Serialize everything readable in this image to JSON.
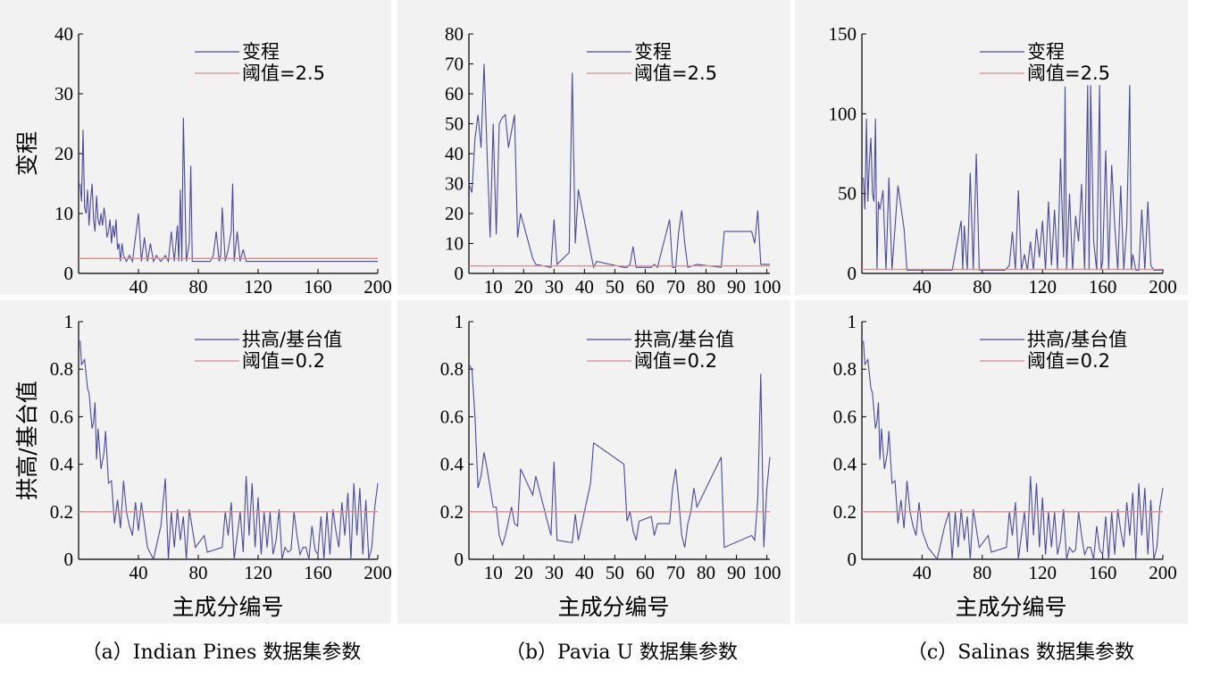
{
  "captions": [
    "（a）Indian Pines 数据集参数",
    "（b）Pavia U 数据集参数",
    "（c）Salinas 数据集参数"
  ],
  "xlabel": "主成分编号",
  "colors": {
    "series": "#4a4a9c",
    "threshold": "#d98c8c",
    "panel_bg": "#f2f2f2"
  },
  "chart_data": [
    {
      "type": "line",
      "ylabel": "变程",
      "xlim": [
        0,
        200
      ],
      "ylim": [
        0,
        40
      ],
      "xticks": [
        40,
        80,
        120,
        160,
        200
      ],
      "yticks": [
        0,
        10,
        20,
        30,
        40
      ],
      "series": [
        {
          "name": "变程",
          "x": [
            1,
            2,
            3,
            4,
            5,
            6,
            7,
            8,
            9,
            10,
            11,
            12,
            13,
            14,
            15,
            16,
            17,
            18,
            19,
            20,
            21,
            22,
            23,
            24,
            25,
            26,
            27,
            28,
            29,
            30,
            32,
            34,
            36,
            38,
            40,
            42,
            44,
            46,
            48,
            50,
            52,
            55,
            58,
            60,
            62,
            64,
            66,
            67,
            68,
            69,
            70,
            72,
            74,
            75,
            76,
            78,
            80,
            84,
            88,
            90,
            92,
            94,
            95,
            96,
            98,
            100,
            102,
            103,
            104,
            106,
            108,
            110,
            112,
            114,
            120,
            130,
            140,
            150,
            160,
            170,
            180,
            190,
            200
          ],
          "values": [
            15,
            12,
            24,
            11,
            10,
            14,
            8,
            12,
            15,
            9,
            7,
            13,
            9,
            8,
            10,
            8,
            11,
            9,
            6,
            7,
            9,
            5,
            8,
            6,
            9,
            4,
            5,
            2,
            5,
            3,
            2,
            3,
            2,
            6,
            10,
            2,
            6,
            2,
            5,
            2,
            3,
            2,
            3,
            2,
            7,
            2,
            8,
            2,
            14,
            2,
            26,
            2,
            5,
            18,
            2,
            2,
            2,
            2,
            2,
            3,
            7,
            2,
            3,
            11,
            2,
            4,
            7,
            15,
            2,
            7,
            2,
            4,
            2,
            2,
            2,
            2,
            2,
            2,
            2,
            2,
            2,
            2,
            2
          ]
        },
        {
          "name": "阈值=2.5",
          "x": [
            0,
            200
          ],
          "values": [
            2.5,
            2.5
          ]
        }
      ]
    },
    {
      "type": "line",
      "xlim": [
        2,
        101
      ],
      "ylim": [
        0,
        80
      ],
      "xticks": [
        10,
        20,
        30,
        40,
        50,
        60,
        70,
        80,
        90,
        100
      ],
      "yticks": [
        0,
        10,
        20,
        30,
        40,
        50,
        60,
        70,
        80
      ],
      "series": [
        {
          "name": "变程",
          "x": [
            2,
            3,
            4,
            5,
            6,
            7,
            8,
            9,
            10,
            11,
            12,
            13,
            14,
            15,
            17,
            18,
            19,
            23,
            24,
            29,
            30,
            31,
            35,
            36,
            37,
            38,
            43,
            44,
            53,
            54,
            55,
            56,
            57,
            58,
            62,
            63,
            64,
            68,
            69,
            70,
            71,
            72,
            73,
            74,
            77,
            85,
            86,
            95,
            96,
            97,
            98,
            99,
            100,
            101
          ],
          "values": [
            30,
            27,
            45,
            53,
            42,
            70,
            40,
            12,
            50,
            13,
            50,
            52,
            53,
            42,
            53,
            12,
            20,
            5,
            3,
            2,
            18,
            3,
            7,
            67,
            10,
            28,
            2,
            4,
            2,
            2,
            3,
            9,
            2,
            2,
            2,
            3,
            2,
            18,
            2,
            2,
            14,
            21,
            10,
            2,
            3,
            2,
            14,
            14,
            10,
            21,
            3,
            3,
            3,
            3
          ]
        },
        {
          "name": "阈值=2.5",
          "x": [
            2,
            101
          ],
          "values": [
            2.5,
            2.5
          ]
        }
      ]
    },
    {
      "type": "line",
      "xlim": [
        0,
        200
      ],
      "ylim": [
        0,
        150
      ],
      "xticks": [
        40,
        80,
        120,
        160,
        200
      ],
      "yticks": [
        0,
        50,
        100,
        150
      ],
      "series": [
        {
          "name": "变程",
          "x": [
            1,
            2,
            3,
            4,
            5,
            6,
            7,
            8,
            9,
            10,
            11,
            12,
            14,
            16,
            18,
            20,
            24,
            28,
            30,
            32,
            40,
            44,
            50,
            60,
            66,
            67,
            68,
            70,
            72,
            74,
            76,
            78,
            85,
            95,
            98,
            100,
            102,
            104,
            106,
            108,
            110,
            112,
            114,
            116,
            118,
            120,
            122,
            124,
            126,
            128,
            130,
            132,
            134,
            135,
            136,
            138,
            140,
            142,
            144,
            146,
            148,
            150,
            151,
            152,
            154,
            156,
            158,
            159,
            160,
            162,
            164,
            166,
            168,
            170,
            172,
            174,
            176,
            178,
            179,
            180,
            182,
            184,
            186,
            188,
            190,
            192,
            194,
            196,
            198,
            200
          ],
          "values": [
            60,
            40,
            97,
            45,
            70,
            85,
            50,
            45,
            97,
            2,
            45,
            40,
            52,
            2,
            60,
            2,
            55,
            28,
            2,
            2,
            2,
            2,
            2,
            2,
            33,
            2,
            30,
            2,
            63,
            2,
            75,
            2,
            2,
            2,
            5,
            26,
            2,
            52,
            2,
            12,
            2,
            20,
            2,
            28,
            10,
            33,
            2,
            45,
            5,
            40,
            2,
            72,
            10,
            117,
            2,
            50,
            2,
            36,
            20,
            56,
            2,
            118,
            2,
            118,
            20,
            2,
            118,
            2,
            8,
            77,
            2,
            68,
            30,
            2,
            55,
            2,
            30,
            118,
            2,
            12,
            2,
            2,
            40,
            2,
            45,
            5,
            2,
            2,
            2,
            2
          ]
        },
        {
          "name": "阈值=2.5",
          "x": [
            0,
            200
          ],
          "values": [
            2.5,
            2.5
          ]
        }
      ]
    },
    {
      "type": "line",
      "ylabel": "拱高/基台值",
      "xlim": [
        0,
        200
      ],
      "ylim": [
        0,
        1
      ],
      "xticks": [
        40,
        80,
        120,
        160,
        200
      ],
      "yticks": [
        0,
        0.2,
        0.4,
        0.6,
        0.8,
        1
      ],
      "series": [
        {
          "name": "拱高/基台值",
          "x": [
            1,
            2,
            4,
            6,
            7,
            9,
            10,
            11,
            12,
            13,
            15,
            17,
            18,
            20,
            22,
            24,
            26,
            28,
            30,
            32,
            34,
            36,
            38,
            40,
            42,
            46,
            50,
            55,
            58,
            60,
            62,
            64,
            66,
            68,
            70,
            72,
            74,
            78,
            84,
            86,
            96,
            98,
            100,
            102,
            104,
            106,
            108,
            110,
            112,
            114,
            116,
            118,
            120,
            122,
            124,
            126,
            128,
            130,
            132,
            134,
            136,
            138,
            140,
            142,
            144,
            146,
            148,
            150,
            152,
            154,
            156,
            158,
            160,
            162,
            164,
            166,
            168,
            170,
            172,
            174,
            176,
            178,
            180,
            182,
            184,
            186,
            188,
            190,
            192,
            194,
            196,
            198,
            200
          ],
          "values": [
            0.92,
            0.82,
            0.84,
            0.72,
            0.7,
            0.55,
            0.58,
            0.66,
            0.42,
            0.55,
            0.38,
            0.45,
            0.54,
            0.32,
            0.33,
            0.15,
            0.25,
            0.13,
            0.33,
            0.2,
            0.14,
            0.1,
            0.24,
            0.12,
            0.24,
            0.05,
            0.0,
            0.14,
            0.34,
            0.0,
            0.2,
            0.05,
            0.21,
            0.08,
            0.18,
            0.0,
            0.21,
            0.05,
            0.1,
            0.03,
            0.05,
            0.2,
            0.1,
            0.24,
            0.0,
            0.1,
            0.2,
            0.03,
            0.35,
            0.1,
            0.32,
            0.05,
            0.26,
            0.02,
            0.2,
            0.05,
            0.2,
            0.02,
            0.08,
            0.21,
            0.0,
            0.05,
            0.03,
            0.04,
            0.2,
            0.1,
            0.02,
            0.05,
            0.05,
            0.0,
            0.14,
            0.04,
            0.02,
            0.18,
            0.0,
            0.2,
            0.02,
            0.21,
            0.12,
            0.05,
            0.24,
            0.1,
            0.28,
            0.0,
            0.32,
            0.1,
            0.3,
            0.02,
            0.25,
            0.0,
            0.05,
            0.22,
            0.32
          ]
        },
        {
          "name": "阈值=0.2",
          "x": [
            0,
            200
          ],
          "values": [
            0.2,
            0.2
          ]
        }
      ]
    },
    {
      "type": "line",
      "xlim": [
        2,
        101
      ],
      "ylim": [
        0,
        1
      ],
      "xticks": [
        10,
        20,
        30,
        40,
        50,
        60,
        70,
        80,
        90,
        100
      ],
      "yticks": [
        0,
        0.2,
        0.4,
        0.6,
        0.8,
        1
      ],
      "series": [
        {
          "name": "拱高/基台值",
          "x": [
            2,
            3,
            4,
            5,
            6,
            7,
            8,
            9,
            10,
            11,
            12,
            13,
            14,
            16,
            17,
            18,
            19,
            23,
            24,
            29,
            30,
            31,
            36,
            37,
            38,
            42,
            43,
            53,
            54,
            55,
            56,
            57,
            58,
            62,
            63,
            64,
            68,
            69,
            70,
            71,
            72,
            73,
            74,
            75,
            76,
            77,
            85,
            86,
            95,
            96,
            97,
            98,
            99,
            100,
            101
          ],
          "values": [
            0.82,
            0.8,
            0.6,
            0.3,
            0.35,
            0.45,
            0.38,
            0.3,
            0.22,
            0.22,
            0.1,
            0.06,
            0.1,
            0.22,
            0.15,
            0.14,
            0.38,
            0.27,
            0.35,
            0.1,
            0.41,
            0.08,
            0.07,
            0.19,
            0.08,
            0.32,
            0.49,
            0.4,
            0.16,
            0.2,
            0.12,
            0.08,
            0.16,
            0.18,
            0.1,
            0.15,
            0.15,
            0.3,
            0.38,
            0.25,
            0.1,
            0.05,
            0.15,
            0.2,
            0.3,
            0.22,
            0.43,
            0.05,
            0.1,
            0.08,
            0.25,
            0.78,
            0.05,
            0.3,
            0.43
          ]
        },
        {
          "name": "阈值=0.2",
          "x": [
            2,
            101
          ],
          "values": [
            0.2,
            0.2
          ]
        }
      ]
    },
    {
      "type": "line",
      "xlim": [
        0,
        200
      ],
      "ylim": [
        0,
        1
      ],
      "xticks": [
        40,
        80,
        120,
        160,
        200
      ],
      "yticks": [
        0,
        0.2,
        0.4,
        0.6,
        0.8,
        1
      ],
      "series": [
        {
          "name": "拱高/基台值",
          "x": [
            1,
            2,
            4,
            6,
            7,
            9,
            10,
            11,
            12,
            13,
            15,
            17,
            18,
            20,
            22,
            24,
            26,
            28,
            30,
            32,
            34,
            36,
            38,
            40,
            44,
            50,
            55,
            58,
            60,
            62,
            64,
            66,
            68,
            70,
            72,
            74,
            78,
            84,
            86,
            96,
            98,
            100,
            102,
            104,
            106,
            108,
            110,
            112,
            114,
            116,
            118,
            120,
            122,
            124,
            126,
            128,
            130,
            132,
            134,
            136,
            138,
            140,
            142,
            144,
            146,
            148,
            150,
            152,
            154,
            156,
            158,
            160,
            162,
            164,
            166,
            168,
            170,
            172,
            174,
            176,
            178,
            180,
            182,
            184,
            186,
            188,
            190,
            192,
            194,
            196,
            198,
            200
          ],
          "values": [
            0.92,
            0.82,
            0.84,
            0.72,
            0.7,
            0.55,
            0.58,
            0.66,
            0.42,
            0.55,
            0.38,
            0.45,
            0.54,
            0.32,
            0.33,
            0.15,
            0.25,
            0.13,
            0.33,
            0.2,
            0.14,
            0.1,
            0.24,
            0.12,
            0.05,
            0.0,
            0.14,
            0.2,
            0.0,
            0.2,
            0.05,
            0.21,
            0.08,
            0.18,
            0.0,
            0.21,
            0.05,
            0.1,
            0.03,
            0.05,
            0.2,
            0.1,
            0.24,
            0.0,
            0.1,
            0.2,
            0.03,
            0.35,
            0.1,
            0.32,
            0.05,
            0.26,
            0.02,
            0.2,
            0.05,
            0.2,
            0.02,
            0.08,
            0.21,
            0.0,
            0.05,
            0.03,
            0.04,
            0.2,
            0.1,
            0.02,
            0.05,
            0.05,
            0.0,
            0.14,
            0.04,
            0.02,
            0.18,
            0.0,
            0.2,
            0.02,
            0.21,
            0.12,
            0.05,
            0.24,
            0.1,
            0.28,
            0.0,
            0.32,
            0.1,
            0.3,
            0.02,
            0.25,
            0.0,
            0.05,
            0.22,
            0.3
          ]
        },
        {
          "name": "阈值=0.2",
          "x": [
            0,
            200
          ],
          "values": [
            0.2,
            0.2
          ]
        }
      ]
    }
  ]
}
